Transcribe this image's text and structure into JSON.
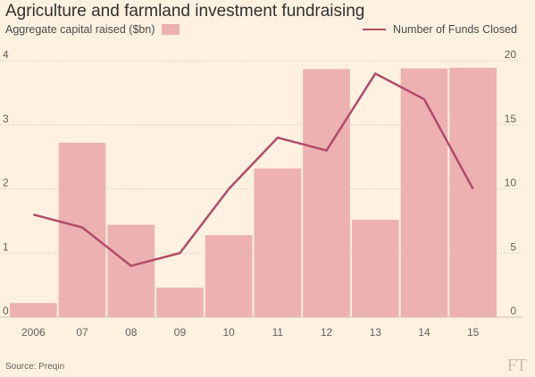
{
  "chart_data": {
    "type": "bar",
    "title": "Agriculture and farmland investment fundraising",
    "categories": [
      "2006",
      "07",
      "08",
      "09",
      "10",
      "11",
      "12",
      "13",
      "14",
      "15"
    ],
    "series": [
      {
        "name": "Aggregate capital raised ($bn)",
        "type": "bar",
        "axis": "left",
        "values": [
          0.22,
          2.72,
          1.44,
          0.46,
          1.28,
          2.32,
          3.87,
          1.52,
          3.88,
          3.89
        ]
      },
      {
        "name": "Number of Funds Closed",
        "type": "line",
        "axis": "right",
        "values": [
          8,
          7,
          4,
          5,
          10,
          14,
          13,
          19,
          17,
          10
        ]
      }
    ],
    "ylim_left": [
      0,
      4
    ],
    "yticks_left": [
      "0",
      "1",
      "2",
      "3",
      "4"
    ],
    "ylim_right": [
      0,
      20
    ],
    "yticks_right": [
      "0",
      "5",
      "10",
      "15",
      "20"
    ],
    "grid": "horizontal dotted",
    "colors": {
      "bar": "#EDB1B1",
      "line": "#B14B6B",
      "background": "#FFF1E0"
    }
  },
  "source": "Source: Preqin",
  "logo": "FT"
}
